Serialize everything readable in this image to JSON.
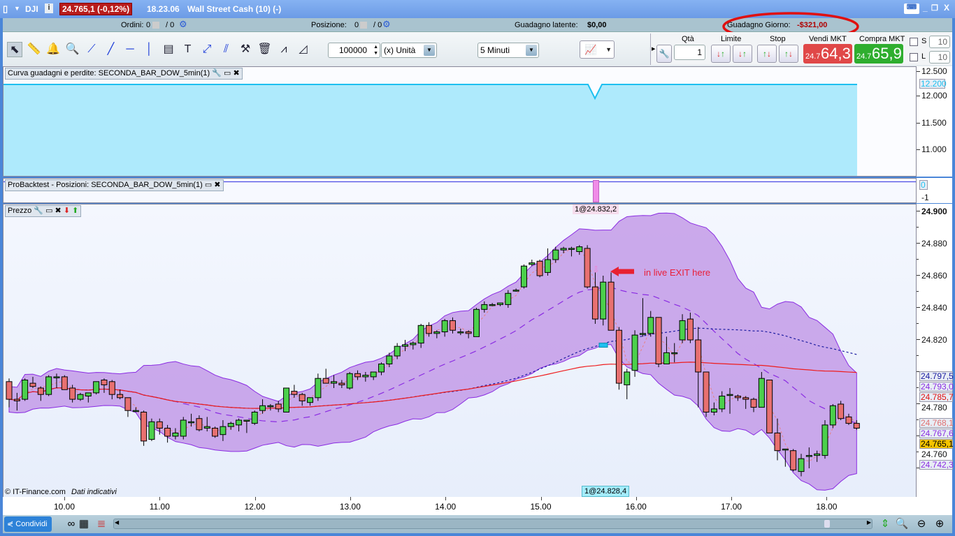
{
  "titlebar": {
    "symbol": "DJI",
    "price_change": "24.765,1 (-0,12%)",
    "time": "18.23.06",
    "instrument": "Wall Street Cash (10) (-)",
    "price_bg": "#b81c1c"
  },
  "infobar": {
    "orders_label": "Ordini:",
    "orders_value": "0",
    "orders_total": "/ 0",
    "position_label": "Posizione:",
    "position_value": "0",
    "position_total": "/ 0",
    "latent_label": "Guadagno latente:",
    "latent_value": "$0,00",
    "day_label": "Guadagno Giorno:",
    "day_value": "-$321,00",
    "day_color": "#b00000"
  },
  "toolbar": {
    "icons": [
      "cursor-icon",
      "ruler-icon",
      "alert-bell-icon",
      "zoom-icon",
      "segment-icon",
      "line-icon",
      "horizontal-line-icon",
      "vertical-line-icon",
      "indicator-icon",
      "text-icon",
      "fibonacci-icon",
      "channel-icon",
      "tools-icon",
      "trash-icon",
      "trend-icon",
      "triangle-icon"
    ],
    "quantity": "100000",
    "unit": "(x) Unità",
    "timeframe": "5 Minuti"
  },
  "order_panel": {
    "qty_label": "Qtà",
    "qty_value": "1",
    "limit_label": "Limite",
    "stop_label": "Stop",
    "sell_label": "Vendi MKT",
    "sell_prefix": "24.7",
    "sell_price": "64,3",
    "buy_label": "Compra MKT",
    "buy_prefix": "24.7",
    "buy_price": "65,9",
    "s_label": "S",
    "s_value": "10",
    "l_label": "L",
    "l_value": "10",
    "sell_color": "#e04848",
    "buy_color": "#2fae2f"
  },
  "equity_panel": {
    "title": "Curva guadagni e perdite: SECONDA_BAR_DOW_5min(1)",
    "axis": [
      "12.500",
      "12.000",
      "11.500",
      "11.000"
    ],
    "current": "12.200",
    "level": 12200,
    "dip": 11950,
    "fill_color": "#aeeafc"
  },
  "positions_panel": {
    "title": "ProBacktest - Posizioni: SECONDA_BAR_DOW_5min(1)",
    "axis": [
      "0",
      "-1"
    ],
    "current": "0"
  },
  "price_panel": {
    "title": "Prezzo",
    "axis": [
      "24.900",
      "24.880",
      "24.860",
      "24.840",
      "24.820",
      "24.780",
      "24.760"
    ],
    "price_labels": [
      {
        "text": "24.797,5",
        "color": "#1a1aa0",
        "value": 24797.5
      },
      {
        "text": "24.793,0",
        "color": "#8a2be2",
        "value": 24793.0
      },
      {
        "text": "24.785,7",
        "color": "#e01010",
        "value": 24785.7
      },
      {
        "text": "24.768,1",
        "color": "#e07070",
        "value": 24768.1
      },
      {
        "text": "24.767,6",
        "color": "#8a2be2",
        "value": 24767.6
      },
      {
        "text": "24.765,1",
        "color": "#000000",
        "value": 24765.1,
        "bg": "#f5c400"
      },
      {
        "text": "24.742,3",
        "color": "#8a2be2",
        "value": 24742.3
      }
    ],
    "entry_label": "1@24.832,2",
    "exit_label": "1@24.828,4",
    "annotation": "in live EXIT here",
    "copyright": "© IT-Finance.com",
    "disclaimer": "Dati indicativi",
    "band_color": "#c39be8",
    "up_color": "#4cd04c",
    "down_color": "#e87070"
  },
  "chart_data": {
    "type": "candlestick",
    "interval": "5 Minuti",
    "ylim": [
      24730,
      24905
    ],
    "x_ticks": [
      "10.00",
      "11.00",
      "12.00",
      "13.00",
      "14.00",
      "15.00",
      "16.00",
      "17.00",
      "18.00"
    ],
    "ohlc": [
      [
        24794,
        24796,
        24778,
        24783
      ],
      [
        24783,
        24787,
        24776,
        24782
      ],
      [
        24783,
        24796,
        24782,
        24795
      ],
      [
        24793,
        24797,
        24790,
        24791
      ],
      [
        24790,
        24791,
        24782,
        24786
      ],
      [
        24786,
        24798,
        24785,
        24797
      ],
      [
        24797,
        24799,
        24790,
        24797
      ],
      [
        24797,
        24798,
        24789,
        24789
      ],
      [
        24790,
        24792,
        24781,
        24783
      ],
      [
        24783,
        24787,
        24782,
        24786
      ],
      [
        24785,
        24787,
        24781,
        24787
      ],
      [
        24787,
        24794,
        24786,
        24794
      ],
      [
        24795,
        24796,
        24787,
        24792
      ],
      [
        24794,
        24795,
        24783,
        24786
      ],
      [
        24786,
        24789,
        24783,
        24784
      ],
      [
        24784,
        24784,
        24772,
        24776
      ],
      [
        24776,
        24778,
        24775,
        24776
      ],
      [
        24775,
        24776,
        24754,
        24757
      ],
      [
        24758,
        24771,
        24757,
        24769
      ],
      [
        24769,
        24771,
        24761,
        24765
      ],
      [
        24765,
        24767,
        24756,
        24760
      ],
      [
        24760,
        24765,
        24758,
        24762
      ],
      [
        24760,
        24772,
        24758,
        24770
      ],
      [
        24769,
        24774,
        24766,
        24769
      ],
      [
        24771,
        24773,
        24763,
        24764
      ],
      [
        24765,
        24772,
        24763,
        24766
      ],
      [
        24765,
        24766,
        24759,
        24760
      ],
      [
        24761,
        24770,
        24757,
        24766
      ],
      [
        24766,
        24769,
        24764,
        24768
      ],
      [
        24767,
        24771,
        24763,
        24770
      ],
      [
        24770,
        24770,
        24762,
        24770
      ],
      [
        24768,
        24776,
        24767,
        24775
      ],
      [
        24776,
        24783,
        24774,
        24779
      ],
      [
        24779,
        24780,
        24776,
        24779
      ],
      [
        24780,
        24782,
        24775,
        24777
      ],
      [
        24775,
        24790,
        24775,
        24790
      ],
      [
        24788,
        24792,
        24784,
        24786
      ],
      [
        24786,
        24787,
        24779,
        24782
      ],
      [
        24781,
        24784,
        24779,
        24784
      ],
      [
        24784,
        24799,
        24782,
        24796
      ],
      [
        24796,
        24802,
        24793,
        24793
      ],
      [
        24793,
        24798,
        24790,
        24794
      ],
      [
        24793,
        24795,
        24790,
        24792
      ],
      [
        24790,
        24800,
        24789,
        24799
      ],
      [
        24799,
        24801,
        24795,
        24797
      ],
      [
        24797,
        24800,
        24794,
        24798
      ],
      [
        24797,
        24800,
        24795,
        24800
      ],
      [
        24800,
        24806,
        24798,
        24805
      ],
      [
        24805,
        24812,
        24803,
        24810
      ],
      [
        24810,
        24818,
        24808,
        24816
      ],
      [
        24816,
        24820,
        24813,
        24817
      ],
      [
        24817,
        24819,
        24814,
        24818
      ],
      [
        24818,
        24830,
        24815,
        24829
      ],
      [
        24829,
        24831,
        24822,
        24824
      ],
      [
        24824,
        24826,
        24821,
        24825
      ],
      [
        24825,
        24833,
        24822,
        24832
      ],
      [
        24832,
        24834,
        24824,
        24826
      ],
      [
        24825,
        24827,
        24823,
        24825
      ],
      [
        24825,
        24826,
        24821,
        24824
      ],
      [
        24822,
        24840,
        24822,
        24839
      ],
      [
        24839,
        24844,
        24837,
        24842
      ],
      [
        24842,
        24843,
        24841,
        24842
      ],
      [
        24842,
        24843,
        24841,
        24843
      ],
      [
        24842,
        24851,
        24840,
        24849
      ],
      [
        24851,
        24852,
        24850,
        24851
      ],
      [
        24853,
        24867,
        24852,
        24866
      ],
      [
        24867,
        24870,
        24866,
        24868
      ],
      [
        24869,
        24870,
        24859,
        24860
      ],
      [
        24862,
        24877,
        24860,
        24870
      ],
      [
        24870,
        24878,
        24868,
        24876
      ],
      [
        24876,
        24878,
        24874,
        24877
      ],
      [
        24877,
        24878,
        24872,
        24877
      ],
      [
        24875,
        24879,
        24873,
        24878
      ],
      [
        24877,
        24879,
        24852,
        24853
      ],
      [
        24853,
        24862,
        24830,
        24833
      ],
      [
        24833,
        24860,
        24829,
        24856
      ],
      [
        24856,
        24862,
        24826,
        24826
      ],
      [
        24826,
        24828,
        24789,
        24793
      ],
      [
        24792,
        24802,
        24783,
        24800
      ],
      [
        24801,
        24826,
        24797,
        24823
      ],
      [
        24824,
        24846,
        24822,
        24824
      ],
      [
        24824,
        24838,
        24822,
        24834
      ],
      [
        24834,
        24834,
        24803,
        24805
      ],
      [
        24805,
        24822,
        24805,
        24812
      ],
      [
        24812,
        24818,
        24806,
        24812
      ],
      [
        24820,
        24836,
        24818,
        24832
      ],
      [
        24833,
        24837,
        24818,
        24820
      ],
      [
        24820,
        24828,
        24778,
        24800
      ],
      [
        24800,
        24800,
        24772,
        24775
      ],
      [
        24775,
        24781,
        24773,
        24777
      ],
      [
        24777,
        24788,
        24775,
        24785
      ],
      [
        24786,
        24790,
        24774,
        24786
      ],
      [
        24785,
        24786,
        24782,
        24784
      ],
      [
        24784,
        24785,
        24777,
        24783
      ],
      [
        24783,
        24784,
        24775,
        24778
      ],
      [
        24778,
        24800,
        24778,
        24796
      ],
      [
        24795,
        24795,
        24762,
        24762
      ],
      [
        24762,
        24771,
        24745,
        24751
      ],
      [
        24752,
        24752,
        24741,
        24752
      ],
      [
        24751,
        24752,
        24738,
        24739
      ],
      [
        24738,
        24749,
        24735,
        24746
      ],
      [
        24748,
        24753,
        24740,
        24748
      ],
      [
        24748,
        24751,
        24744,
        24749
      ],
      [
        24748,
        24770,
        24746,
        24767
      ],
      [
        24767,
        24780,
        24765,
        24779
      ],
      [
        24780,
        24782,
        24770,
        24771
      ],
      [
        24772,
        24774,
        24767,
        24768
      ],
      [
        24768,
        24770,
        24764,
        24765
      ]
    ]
  },
  "bottombar": {
    "share_label": "Condividi"
  }
}
